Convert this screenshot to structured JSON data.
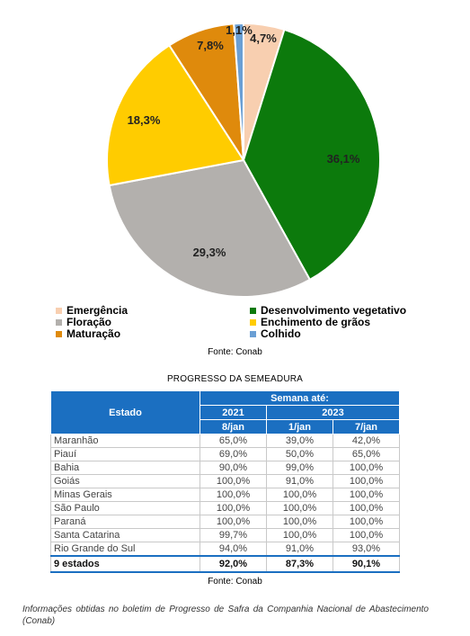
{
  "chart_data": {
    "type": "pie",
    "slices": [
      {
        "label": "Emergência",
        "value": 4.7,
        "display": "4,7%",
        "color": "#f8cfb0"
      },
      {
        "label": "Desenvolvimento vegetativo",
        "value": 36.1,
        "display": "36,1%",
        "color": "#0c7a0c"
      },
      {
        "label": "Floração",
        "value": 29.3,
        "display": "29,3%",
        "color": "#b3b0ad"
      },
      {
        "label": "Enchimento de grãos",
        "value": 18.3,
        "display": "18,3%",
        "color": "#ffcc00"
      },
      {
        "label": "Maturação",
        "value": 7.8,
        "display": "7,8%",
        "color": "#df8a0c"
      },
      {
        "label": "Colhido",
        "value": 1.1,
        "display": "1,1%",
        "color": "#6a9fd4"
      }
    ],
    "legend_position": "bottom"
  },
  "legend": {
    "items": [
      {
        "label": "Emergência",
        "color": "#f8cfb0"
      },
      {
        "label": "Desenvolvimento vegetativo",
        "color": "#0c7a0c"
      },
      {
        "label": "Floração",
        "color": "#b3b0ad"
      },
      {
        "label": "Enchimento de grãos",
        "color": "#ffcc00"
      },
      {
        "label": "Maturação",
        "color": "#df8a0c"
      },
      {
        "label": "Colhido",
        "color": "#6a9fd4"
      }
    ]
  },
  "source_1": "Fonte: Conab",
  "table": {
    "title": "PROGRESSO DA SEMEADURA",
    "header": {
      "estado": "Estado",
      "semana": "Semana até:",
      "year_2021": "2021",
      "year_2023": "2023",
      "col_1": "8/jan",
      "col_2": "1/jan",
      "col_3": "7/jan"
    },
    "rows": [
      {
        "estado": "Maranhão",
        "v1": "65,0%",
        "v2": "39,0%",
        "v3": "42,0%"
      },
      {
        "estado": "Piauí",
        "v1": "69,0%",
        "v2": "50,0%",
        "v3": "65,0%"
      },
      {
        "estado": "Bahia",
        "v1": "90,0%",
        "v2": "99,0%",
        "v3": "100,0%"
      },
      {
        "estado": "Goiás",
        "v1": "100,0%",
        "v2": "91,0%",
        "v3": "100,0%"
      },
      {
        "estado": "Minas Gerais",
        "v1": "100,0%",
        "v2": "100,0%",
        "v3": "100,0%"
      },
      {
        "estado": "São Paulo",
        "v1": "100,0%",
        "v2": "100,0%",
        "v3": "100,0%"
      },
      {
        "estado": "Paraná",
        "v1": "100,0%",
        "v2": "100,0%",
        "v3": "100,0%"
      },
      {
        "estado": "Santa Catarina",
        "v1": "99,7%",
        "v2": "100,0%",
        "v3": "100,0%"
      },
      {
        "estado": "Rio Grande do Sul",
        "v1": "94,0%",
        "v2": "91,0%",
        "v3": "93,0%"
      }
    ],
    "total": {
      "estado": "9 estados",
      "v1": "92,0%",
      "v2": "87,3%",
      "v3": "90,1%"
    }
  },
  "source_2": "Fonte: Conab",
  "note": "Informações obtidas no boletim de Progresso de Safra da Companhia Nacional de Abastecimento (Conab)"
}
